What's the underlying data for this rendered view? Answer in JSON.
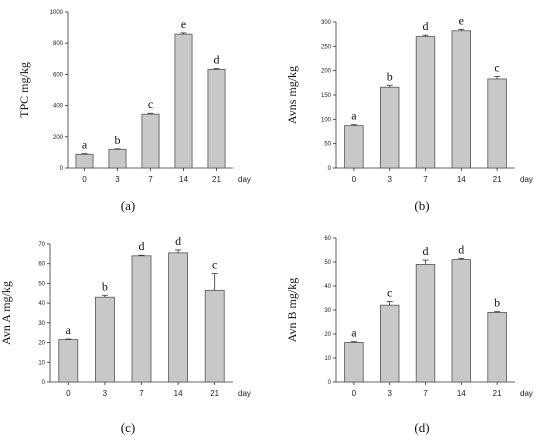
{
  "chart_data": [
    {
      "type": "bar",
      "caption": "(a)",
      "ylabel": "TPC mg/kg",
      "xunit": "day",
      "categories": [
        "0",
        "3",
        "7",
        "14",
        "21"
      ],
      "values": [
        88,
        120,
        345,
        858,
        632
      ],
      "errors": [
        4,
        3,
        6,
        8,
        5
      ],
      "significance": [
        "a",
        "b",
        "c",
        "e",
        "d"
      ],
      "ylim": [
        0,
        1000
      ],
      "yticks": [
        0,
        200,
        400,
        600,
        800,
        1000
      ]
    },
    {
      "type": "bar",
      "caption": "(b)",
      "ylabel": "Avns mg/kg",
      "xunit": "day",
      "categories": [
        "0",
        "3",
        "7",
        "14",
        "21"
      ],
      "values": [
        87,
        166,
        270,
        282,
        183
      ],
      "errors": [
        2,
        4,
        3,
        3,
        5
      ],
      "significance": [
        "a",
        "b",
        "d",
        "e",
        "c"
      ],
      "ylim": [
        0,
        300
      ],
      "yticks": [
        0,
        50,
        100,
        150,
        200,
        250,
        300
      ]
    },
    {
      "type": "bar",
      "caption": "(c)",
      "ylabel": "Avn A mg/kg",
      "xunit": "day",
      "categories": [
        "0",
        "3",
        "7",
        "14",
        "21"
      ],
      "values": [
        21.5,
        43,
        64,
        65.5,
        46.5
      ],
      "errors": [
        0.3,
        1,
        0.3,
        1.5,
        8.5
      ],
      "significance": [
        "a",
        "b",
        "d",
        "d",
        "c"
      ],
      "ylim": [
        0,
        70
      ],
      "yticks": [
        0,
        10,
        20,
        30,
        40,
        50,
        60,
        70
      ]
    },
    {
      "type": "bar",
      "caption": "(d)",
      "ylabel": "Avn B mg/kg",
      "xunit": "day",
      "categories": [
        "0",
        "3",
        "7",
        "14",
        "21"
      ],
      "values": [
        16.5,
        32,
        49,
        51,
        29
      ],
      "errors": [
        0.3,
        1.5,
        1.8,
        0.5,
        0.3
      ],
      "significance": [
        "a",
        "c",
        "d",
        "d",
        "b"
      ],
      "ylim": [
        0,
        60
      ],
      "yticks": [
        0,
        10,
        20,
        30,
        40,
        50,
        60
      ]
    }
  ]
}
